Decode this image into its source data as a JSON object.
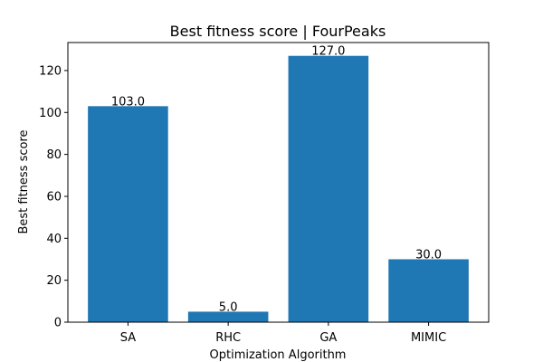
{
  "chart_data": {
    "type": "bar",
    "title": "Best fitness score | FourPeaks",
    "xlabel": "Optimization Algorithm",
    "ylabel": "Best fitness score",
    "categories": [
      "SA",
      "RHC",
      "GA",
      "MIMIC"
    ],
    "values": [
      103.0,
      5.0,
      127.0,
      30.0
    ],
    "data_labels": [
      "103.0",
      "5.0",
      "127.0",
      "30.0"
    ],
    "ylim": [
      0,
      133.35
    ],
    "yticks": [
      0,
      20,
      40,
      60,
      80,
      100,
      120
    ],
    "grid": false,
    "legend": "none",
    "bar_color": "#1f77b4"
  }
}
